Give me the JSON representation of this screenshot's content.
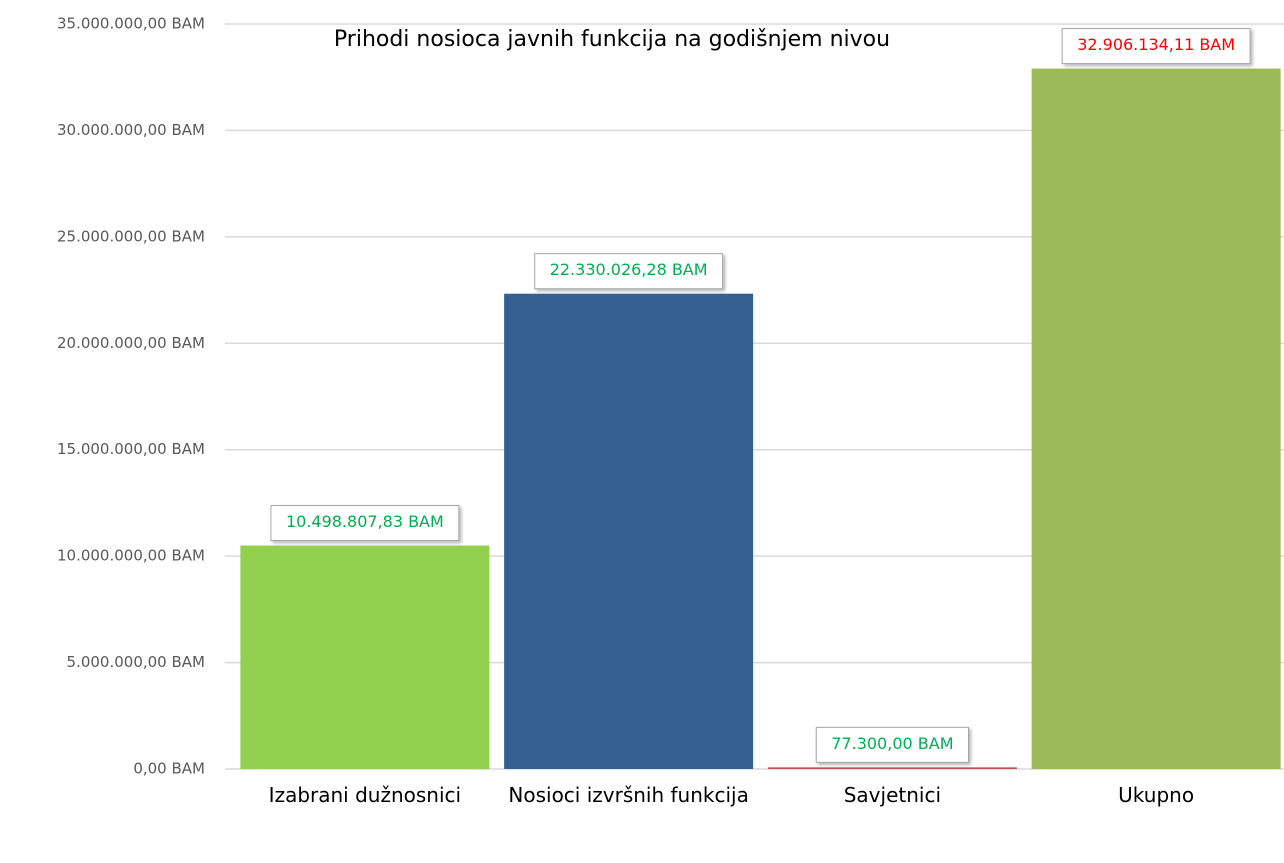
{
  "chart_data": {
    "type": "bar",
    "title": "Prihodi nosioca javnih funkcija na godišnjem nivou",
    "categories": [
      "Izabrani dužnosnici",
      "Nosioci izvršnih funkcija",
      "Savjetnici",
      "Ukupno"
    ],
    "values": [
      10498807.83,
      22330026.28,
      77300,
      32906134.11
    ],
    "value_labels": [
      "10.498.807,83 BAM",
      "22.330.026,28 BAM",
      "77.300,00 BAM",
      "32.906.134,11 BAM"
    ],
    "colors": [
      "#92d050",
      "#366092",
      "#c0504d",
      "#9bbb59"
    ],
    "label_colors": [
      "#00b050",
      "#00b050",
      "#00b050",
      "#ff0000"
    ],
    "ylim": [
      0,
      35000000
    ],
    "yticks": [
      {
        "value": 0,
        "label": "0,00 BAM"
      },
      {
        "value": 5000000,
        "label": "5.000.000,00 BAM"
      },
      {
        "value": 10000000,
        "label": "10.000.000,00 BAM"
      },
      {
        "value": 15000000,
        "label": "15.000.000,00 BAM"
      },
      {
        "value": 20000000,
        "label": "20.000.000,00 BAM"
      },
      {
        "value": 25000000,
        "label": "25.000.000,00 BAM"
      },
      {
        "value": 30000000,
        "label": "30.000.000,00 BAM"
      },
      {
        "value": 35000000,
        "label": "35.000.000,00 BAM"
      }
    ],
    "grid": true
  }
}
